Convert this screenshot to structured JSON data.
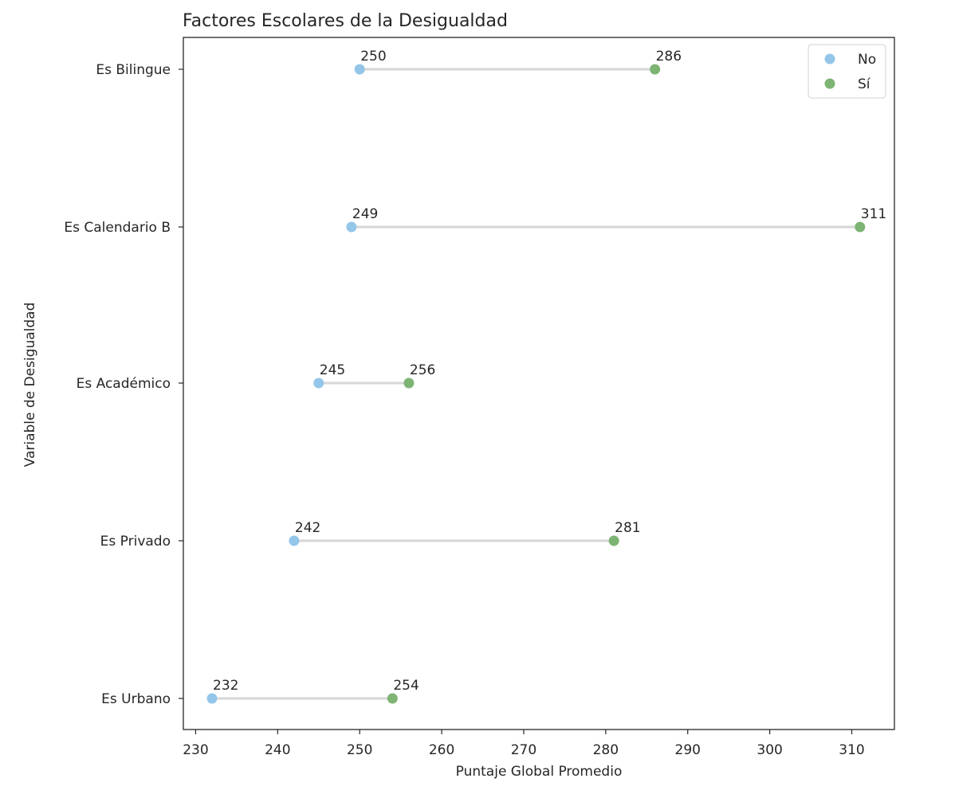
{
  "chart_data": {
    "type": "dumbbell",
    "title": "Factores Escolares de la Desigualdad",
    "xlabel": "Puntaje Global Promedio",
    "ylabel": "Variable de Desigualdad",
    "xlim": [
      228.5,
      315.2
    ],
    "xticks": [
      230,
      240,
      250,
      260,
      270,
      280,
      290,
      300,
      310
    ],
    "categories": [
      "Es Bilingue",
      "Es Calendario B",
      "Es Académico",
      "Es Privado",
      "Es Urbano"
    ],
    "series": [
      {
        "name": "No",
        "color": "#93c6e9",
        "values": [
          250,
          249,
          245,
          242,
          232
        ]
      },
      {
        "name": "Sí",
        "color": "#7db473",
        "values": [
          286,
          311,
          256,
          281,
          254
        ]
      }
    ],
    "connector_color": "#d6d6d6",
    "legend": "top-right",
    "grid": false
  }
}
